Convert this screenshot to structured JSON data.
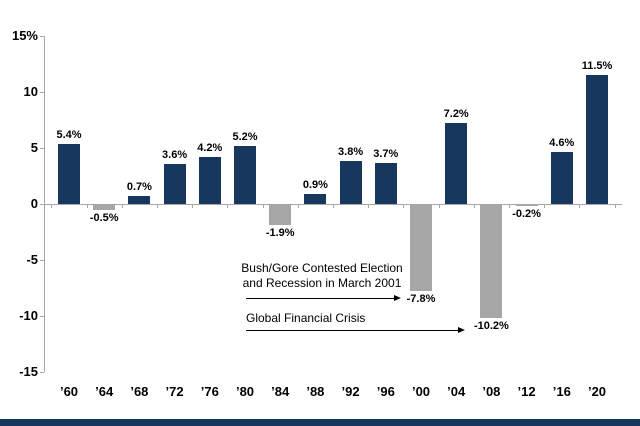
{
  "chart_data": {
    "type": "bar",
    "title": "",
    "xlabel": "",
    "ylabel": "",
    "categories": [
      "’60",
      "’64",
      "’68",
      "’72",
      "’76",
      "’80",
      "’84",
      "’88",
      "’92",
      "’96",
      "’00",
      "’04",
      "’08",
      "’12",
      "’16",
      "’20"
    ],
    "values": [
      5.4,
      -0.5,
      0.7,
      3.6,
      4.2,
      5.2,
      -1.9,
      0.9,
      3.8,
      3.7,
      -7.8,
      7.2,
      -10.2,
      -0.2,
      4.6,
      11.5
    ],
    "value_labels": [
      "5.4%",
      "-0.5%",
      "0.7%",
      "3.6%",
      "4.2%",
      "5.2%",
      "-1.9%",
      "0.9%",
      "3.8%",
      "3.7%",
      "-7.8%",
      "7.2%",
      "-10.2%",
      "-0.2%",
      "4.6%",
      "11.5%"
    ],
    "ylim": [
      -15,
      15
    ],
    "yticks": [
      15,
      10,
      5,
      0,
      -5,
      -10,
      -15
    ],
    "ytick_labels": [
      "15%",
      "10",
      "5",
      "0",
      "-5",
      "-10",
      "-15"
    ],
    "grid": false,
    "legend": "none",
    "colors": {
      "positive": "#17375e",
      "negative": "#a6a6a6",
      "axis": "#a6a6a6",
      "footer": "#17375e"
    },
    "annotations": [
      {
        "line1": "Bush/Gore Contested Election",
        "line2": "and Recession in March 2001",
        "points_to": "’00 bar (-7.8%)"
      },
      {
        "line1": "Global Financial Crisis",
        "points_to": "’08 bar (-10.2%)"
      }
    ]
  }
}
